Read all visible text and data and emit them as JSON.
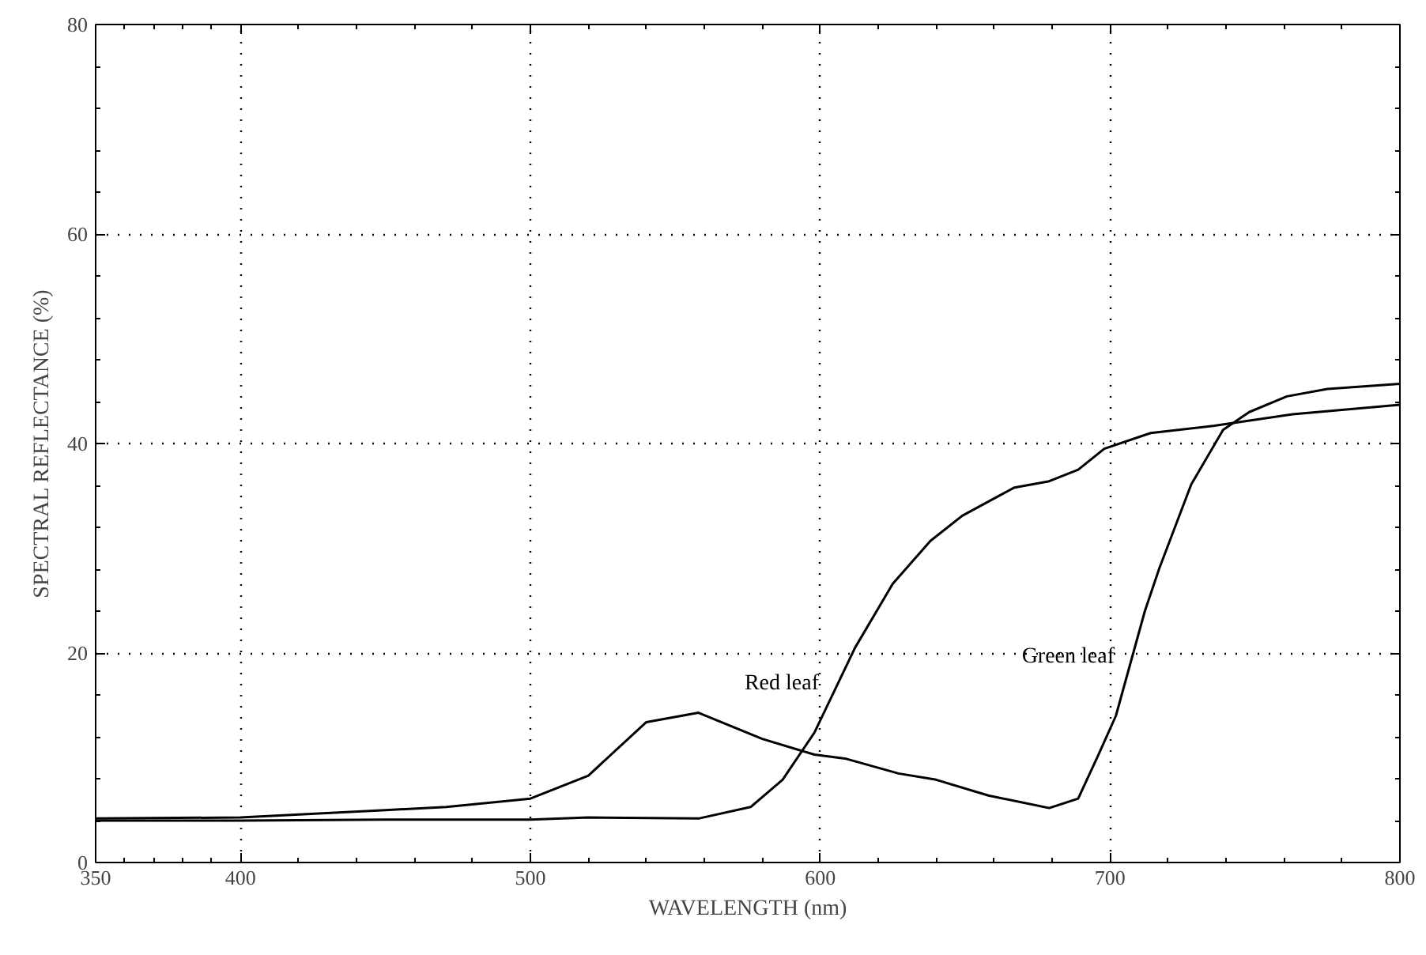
{
  "chart_data": {
    "type": "line",
    "xlabel": "WAVELENGTH (nm)",
    "ylabel": "SPECTRAL REFLECTANCE (%)",
    "xlim": [
      350,
      800
    ],
    "ylim": [
      0,
      80
    ],
    "xticks": [
      350,
      400,
      500,
      600,
      700,
      800
    ],
    "yticks": [
      0,
      20,
      40,
      60,
      80
    ],
    "grid": true,
    "line_style": "solid",
    "marker": "none",
    "series": [
      {
        "name": "Green leaf",
        "color": "#000000",
        "x": [
          350,
          400,
          450,
          471,
          500,
          520,
          540,
          558,
          580,
          598,
          609,
          627,
          640,
          658,
          679,
          689,
          696,
          702,
          712,
          717,
          728,
          739,
          748,
          761,
          775,
          800
        ],
        "values": [
          4.2,
          4.3,
          5.0,
          5.3,
          6.1,
          8.3,
          13.4,
          14.3,
          11.8,
          10.3,
          9.9,
          8.5,
          7.9,
          6.4,
          5.2,
          6.1,
          10.3,
          14.0,
          24.0,
          28.1,
          36.1,
          41.3,
          43.0,
          44.5,
          45.2,
          45.7
        ]
      },
      {
        "name": "Red leaf",
        "color": "#000000",
        "x": [
          350,
          400,
          450,
          500,
          520,
          558,
          576,
          587,
          598,
          612,
          625,
          638,
          649,
          667,
          679,
          689,
          698,
          714,
          736,
          763,
          800
        ],
        "values": [
          4.0,
          4.0,
          4.1,
          4.1,
          4.3,
          4.2,
          5.3,
          7.9,
          12.4,
          20.5,
          26.6,
          30.7,
          33.1,
          35.8,
          36.4,
          37.5,
          39.5,
          41.0,
          41.7,
          42.8,
          43.7
        ]
      }
    ]
  }
}
